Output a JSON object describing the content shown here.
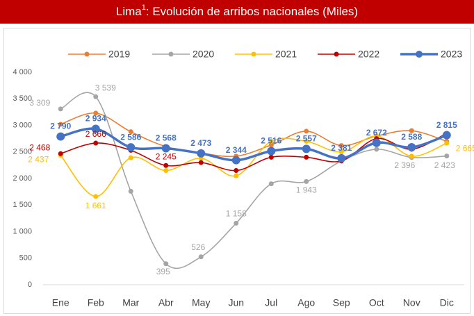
{
  "chart_data": {
    "type": "line",
    "title": {
      "main": "Lima",
      "sup": "1",
      "rest": ": Evolución de arribos nacionales (Miles)"
    },
    "categories": [
      "Ene",
      "Feb",
      "Mar",
      "Abr",
      "May",
      "Jun",
      "Jul",
      "Ago",
      "Sep",
      "Oct",
      "Nov",
      "Dic"
    ],
    "ylim": [
      0,
      4000
    ],
    "yticks": [
      0,
      500,
      {
        "value": 1000,
        "label": "1 000"
      },
      {
        "value": 1500,
        "label": "1 500"
      },
      {
        "value": 2000,
        "label": "2 000"
      },
      {
        "value": 2500,
        "label": "2 500"
      },
      {
        "value": 3000,
        "label": "3 000"
      },
      {
        "value": 3500,
        "label": "3 500"
      },
      {
        "value": 4000,
        "label": "4 000"
      }
    ],
    "grid": false,
    "legend": "top",
    "series": [
      {
        "name": "2019",
        "color": "#ed7d31",
        "values": [
          3020,
          3230,
          2880,
          2600,
          2480,
          2420,
          2630,
          2890,
          2620,
          2800,
          2900,
          2700
        ],
        "value_labels": [
          null,
          null,
          null,
          null,
          null,
          null,
          null,
          null,
          null,
          null,
          null,
          null
        ]
      },
      {
        "name": "2020",
        "color": "#a5a5a5",
        "values": [
          3309,
          3539,
          1760,
          395,
          526,
          1158,
          1900,
          1943,
          2330,
          2550,
          2396,
          2423
        ],
        "value_labels": [
          "3 309",
          "3 539",
          null,
          "395",
          "526",
          "1 158",
          null,
          "1 943",
          null,
          null,
          "2 396",
          "2 423"
        ]
      },
      {
        "name": "2021",
        "color": "#ffc000",
        "values": [
          2437,
          1661,
          2390,
          2150,
          2380,
          2050,
          2700,
          2700,
          2500,
          2800,
          2420,
          2665
        ],
        "value_labels": [
          "2 437",
          "1 661",
          null,
          null,
          null,
          null,
          null,
          null,
          null,
          null,
          null,
          "2 665"
        ]
      },
      {
        "name": "2022",
        "color": "#c00000",
        "values": [
          2468,
          2666,
          2530,
          2245,
          2300,
          2150,
          2400,
          2400,
          2330,
          2750,
          2550,
          2850
        ],
        "value_labels": [
          "2 468",
          "2 666",
          null,
          "2 245",
          null,
          null,
          null,
          null,
          null,
          null,
          null,
          null
        ]
      },
      {
        "name": "2023",
        "color": "#4472c4",
        "values": [
          2790,
          2934,
          2586,
          2568,
          2473,
          2344,
          2516,
          2557,
          2381,
          2672,
          2588,
          2815
        ],
        "value_labels": [
          "2 790",
          "2 934",
          "2 586",
          "2 568",
          "2 473",
          "2 344",
          "2 516",
          "2 557",
          "2 381",
          "2 672",
          "2 588",
          "2 815"
        ]
      }
    ]
  }
}
